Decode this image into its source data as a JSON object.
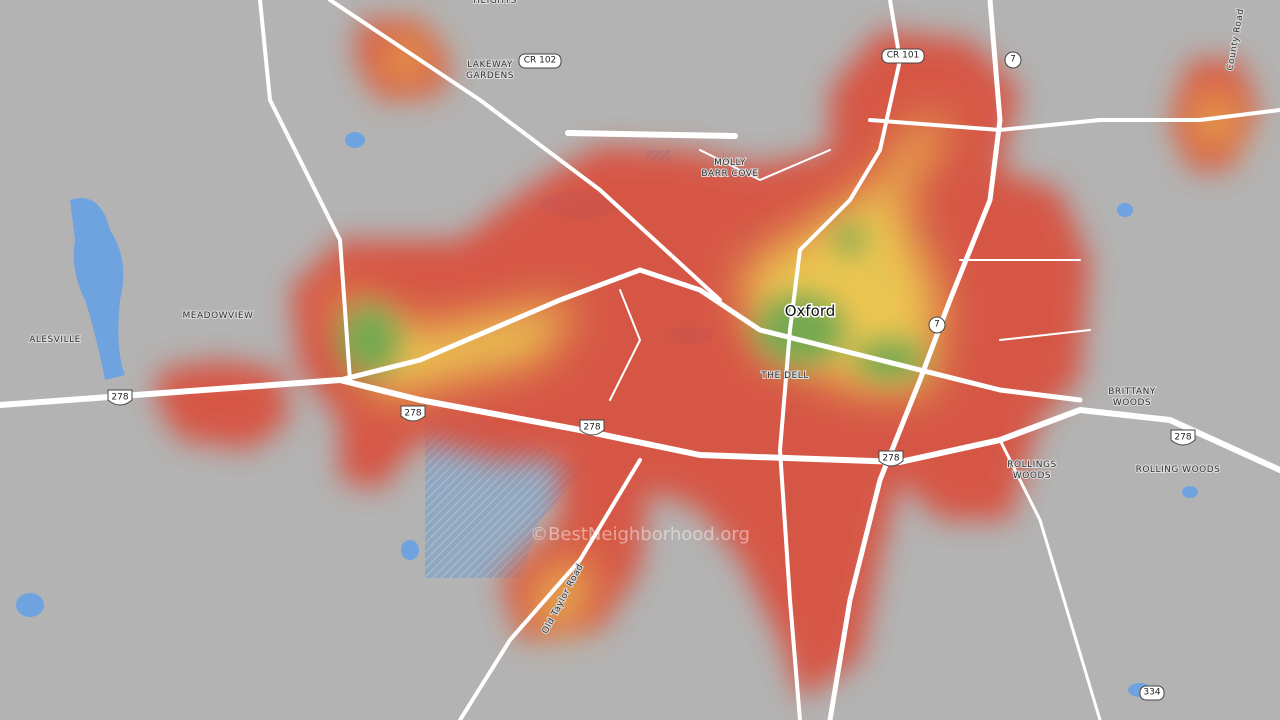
{
  "place_labels": [
    [
      "HEIGHTS"
    ],
    [
      "LAKEWAY",
      "GARDENS"
    ],
    [
      "MOLLY",
      "BARR COVE"
    ],
    [
      "Oxford"
    ],
    [
      "THE DELL"
    ],
    [
      "MEADOWVIEW"
    ],
    [
      "ALESVILLE"
    ],
    [
      "BRITTANY",
      "WOODS"
    ],
    [
      "ROLLINGS",
      "WOODS"
    ],
    [
      "ROLLING WOODS"
    ]
  ],
  "road_labels": [
    "County Road",
    "Old Taylor Road"
  ],
  "shields": [
    "CR 102",
    "CR 101",
    "7",
    "7",
    "278",
    "278",
    "278",
    "278",
    "278",
    "334"
  ],
  "watermark": "©BestNeighborhood.org"
}
